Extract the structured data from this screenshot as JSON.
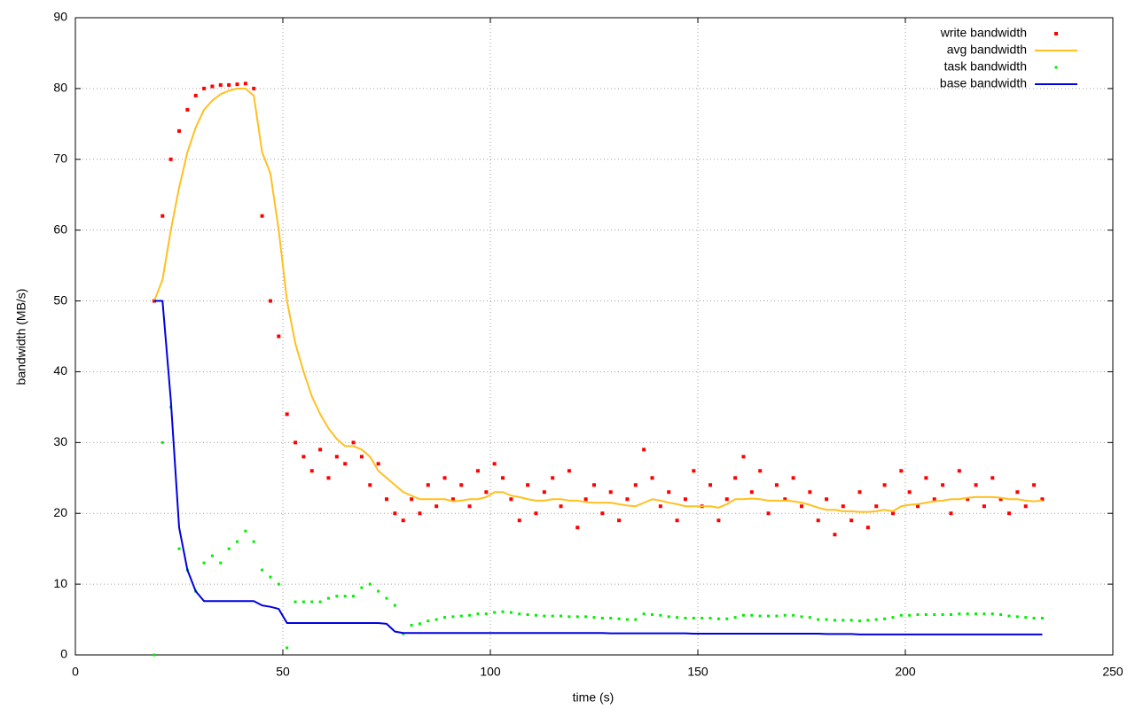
{
  "chart_data": {
    "type": "line",
    "xlabel": "time (s)",
    "ylabel": "bandwidth (MB/s)",
    "xlim": [
      0,
      250
    ],
    "xticks": [
      0,
      50,
      100,
      150,
      200,
      250
    ],
    "ylim": [
      0,
      90
    ],
    "yticks": [
      0,
      10,
      20,
      30,
      40,
      50,
      60,
      70,
      80,
      90
    ],
    "grid": true,
    "legend": "top-right",
    "x": [
      19,
      21,
      23,
      25,
      27,
      29,
      31,
      33,
      35,
      37,
      39,
      41,
      43,
      45,
      47,
      49,
      51,
      53,
      55,
      57,
      59,
      61,
      63,
      65,
      67,
      69,
      71,
      73,
      75,
      77,
      79,
      81,
      83,
      85,
      87,
      89,
      91,
      93,
      95,
      97,
      99,
      101,
      103,
      105,
      107,
      109,
      111,
      113,
      115,
      117,
      119,
      121,
      123,
      125,
      127,
      129,
      131,
      133,
      135,
      137,
      139,
      141,
      143,
      145,
      147,
      149,
      151,
      153,
      155,
      157,
      159,
      161,
      163,
      165,
      167,
      169,
      171,
      173,
      175,
      177,
      179,
      181,
      183,
      185,
      187,
      189,
      191,
      193,
      195,
      197,
      199,
      201,
      203,
      205,
      207,
      209,
      211,
      213,
      215,
      217,
      219,
      221,
      223,
      225,
      227,
      229,
      231,
      233
    ],
    "series": [
      {
        "name": "write bandwidth",
        "color": "#ff0000",
        "mode": "points",
        "values": [
          50,
          62,
          70,
          74,
          77,
          79,
          80,
          80.3,
          80.5,
          80.5,
          80.6,
          80.7,
          80,
          62,
          50,
          45,
          34,
          30,
          28,
          26,
          29,
          25,
          28,
          27,
          30,
          28,
          24,
          27,
          22,
          20,
          19,
          22,
          20,
          24,
          21,
          25,
          22,
          24,
          21,
          26,
          23,
          27,
          25,
          22,
          19,
          24,
          20,
          23,
          25,
          21,
          26,
          18,
          22,
          24,
          20,
          23,
          19,
          22,
          24,
          29,
          25,
          21,
          23,
          19,
          22,
          26,
          21,
          24,
          19,
          22,
          25,
          28,
          23,
          26,
          20,
          24,
          22,
          25,
          21,
          23,
          19,
          22,
          17,
          21,
          19,
          23,
          18,
          21,
          24,
          20,
          26,
          23,
          21,
          25,
          22,
          24,
          20,
          26,
          22,
          24,
          21,
          25,
          22,
          20,
          23,
          21,
          24,
          22
        ]
      },
      {
        "name": "avg bandwidth",
        "color": "#ffc020",
        "mode": "line",
        "values": [
          50,
          53,
          60,
          66,
          71,
          74.5,
          77,
          78.3,
          79.2,
          79.7,
          80,
          80,
          79,
          71,
          68,
          60,
          50,
          44,
          40,
          36.5,
          34,
          32,
          30.5,
          29.5,
          29.5,
          29,
          28,
          26,
          25,
          24,
          23,
          22.5,
          22,
          22,
          22,
          22,
          21.7,
          21.8,
          22,
          22,
          22.3,
          23,
          23,
          22.5,
          22.3,
          22,
          21.8,
          21.8,
          22,
          22,
          21.8,
          21.8,
          21.6,
          21.5,
          21.5,
          21.5,
          21.3,
          21.1,
          21,
          21.5,
          22,
          21.8,
          21.5,
          21.3,
          21,
          21,
          21,
          21,
          20.8,
          21.3,
          22,
          22,
          22.1,
          22,
          21.8,
          21.8,
          21.8,
          21.7,
          21.5,
          21.2,
          20.8,
          20.5,
          20.5,
          20.3,
          20.3,
          20.2,
          20.2,
          20.3,
          20.5,
          20.3,
          21,
          21.2,
          21.3,
          21.5,
          21.7,
          21.8,
          22,
          22,
          22.2,
          22.3,
          22.3,
          22.3,
          22.2,
          22,
          22,
          21.8,
          21.7,
          21.8
        ]
      },
      {
        "name": "task bandwidth",
        "color": "#00ee00",
        "mode": "points",
        "values": [
          0,
          30,
          35,
          15,
          12,
          9,
          13,
          14,
          13,
          15,
          16,
          17.5,
          16,
          12,
          11,
          10,
          1,
          7.5,
          7.5,
          7.5,
          7.5,
          8,
          8.3,
          8.3,
          8.3,
          9.5,
          10,
          9,
          8,
          7,
          3,
          4.2,
          4.4,
          4.8,
          5,
          5.3,
          5.4,
          5.5,
          5.6,
          5.8,
          5.8,
          6,
          6.1,
          6,
          5.8,
          5.7,
          5.6,
          5.5,
          5.5,
          5.5,
          5.4,
          5.4,
          5.4,
          5.3,
          5.2,
          5.2,
          5.1,
          5,
          5,
          5.8,
          5.7,
          5.6,
          5.4,
          5.3,
          5.2,
          5.2,
          5.2,
          5.2,
          5.1,
          5.1,
          5.3,
          5.6,
          5.6,
          5.5,
          5.5,
          5.5,
          5.6,
          5.6,
          5.4,
          5.3,
          5,
          5,
          4.9,
          4.9,
          4.9,
          4.8,
          4.9,
          5,
          5.1,
          5.3,
          5.6,
          5.6,
          5.7,
          5.7,
          5.7,
          5.7,
          5.7,
          5.8,
          5.8,
          5.8,
          5.8,
          5.8,
          5.7,
          5.5,
          5.4,
          5.3,
          5.2,
          5.2
        ]
      },
      {
        "name": "base bandwidth",
        "color": "#0000e0",
        "mode": "line",
        "values": [
          50,
          50,
          36,
          18,
          12,
          9,
          7.6,
          7.6,
          7.6,
          7.6,
          7.6,
          7.6,
          7.6,
          7,
          6.8,
          6.5,
          4.5,
          4.5,
          4.5,
          4.5,
          4.5,
          4.5,
          4.5,
          4.5,
          4.5,
          4.5,
          4.5,
          4.5,
          4.4,
          3.3,
          3.1,
          3.1,
          3.1,
          3.1,
          3.1,
          3.1,
          3.1,
          3.1,
          3.1,
          3.1,
          3.1,
          3.1,
          3.1,
          3.1,
          3.1,
          3.1,
          3.1,
          3.1,
          3.1,
          3.1,
          3.1,
          3.1,
          3.1,
          3.1,
          3.1,
          3.05,
          3.05,
          3.05,
          3.05,
          3.05,
          3.05,
          3.05,
          3.05,
          3.05,
          3.05,
          3,
          3,
          3,
          3,
          3,
          3,
          3,
          3,
          3,
          3,
          3,
          3,
          3,
          3,
          3,
          3,
          2.95,
          2.95,
          2.95,
          2.95,
          2.9,
          2.9,
          2.9,
          2.9,
          2.9,
          2.9,
          2.9,
          2.9,
          2.9,
          2.9,
          2.9,
          2.9,
          2.9,
          2.9,
          2.9,
          2.9,
          2.9,
          2.9,
          2.9,
          2.9,
          2.9,
          2.9,
          2.9
        ]
      }
    ]
  }
}
